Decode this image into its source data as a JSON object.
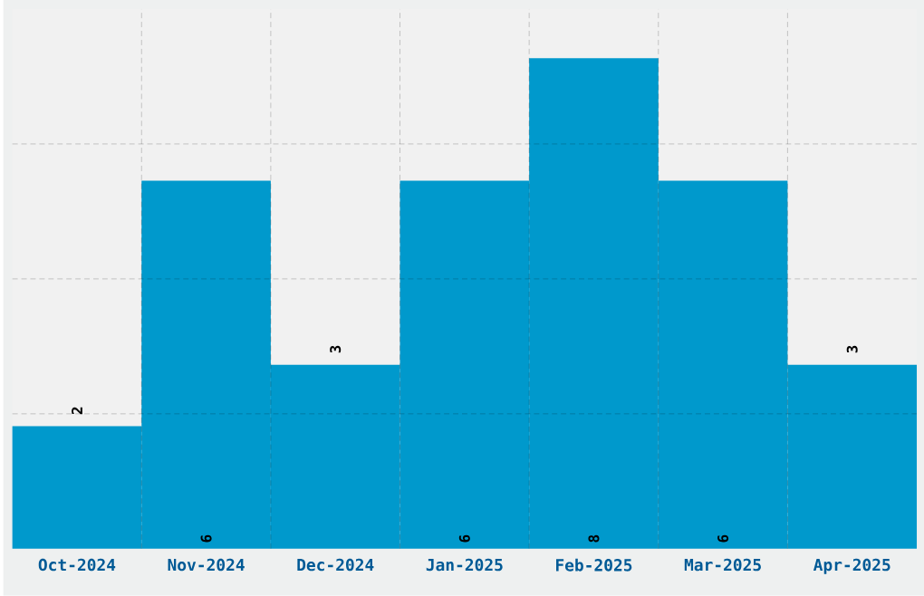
{
  "chart_data": {
    "type": "bar",
    "categories": [
      "Oct-2024",
      "Nov-2024",
      "Dec-2024",
      "Jan-2025",
      "Feb-2025",
      "Mar-2025",
      "Apr-2025"
    ],
    "values": [
      2,
      6,
      3,
      6,
      8,
      6,
      3
    ],
    "value_labels": [
      "2",
      "6",
      "3",
      "6",
      "8",
      "6",
      "3"
    ],
    "color": "#0099cc",
    "ylim": [
      0,
      8.8
    ],
    "yticks": [
      {
        "value": 2.2,
        "label": null
      },
      {
        "value": 4.4,
        "label": null
      },
      {
        "value": 6.6,
        "label": null
      }
    ],
    "grid": true
  }
}
